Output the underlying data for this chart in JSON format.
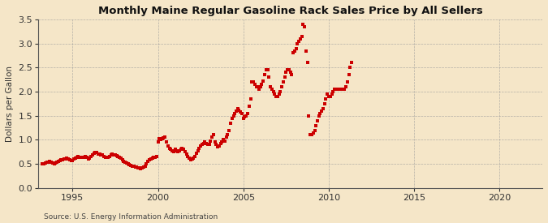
{
  "title": "Monthly Maine Regular Gasoline Rack Sales Price by All Sellers",
  "ylabel": "Dollars per Gallon",
  "source": "Source: U.S. Energy Information Administration",
  "background_color": "#f5e6c8",
  "plot_bg_color": "#f5e6c8",
  "line_color": "#cc0000",
  "marker": "s",
  "markersize": 2.2,
  "xlim": [
    1993.0,
    2022.5
  ],
  "ylim": [
    0.0,
    3.5
  ],
  "yticks": [
    0.0,
    0.5,
    1.0,
    1.5,
    2.0,
    2.5,
    3.0,
    3.5
  ],
  "xticks": [
    1995,
    2000,
    2005,
    2010,
    2015,
    2020
  ],
  "data": {
    "dates": [
      1993.25,
      1993.33,
      1993.42,
      1993.5,
      1993.58,
      1993.67,
      1993.75,
      1993.83,
      1993.92,
      1994.0,
      1994.08,
      1994.17,
      1994.25,
      1994.33,
      1994.42,
      1994.5,
      1994.58,
      1994.67,
      1994.75,
      1994.83,
      1994.92,
      1995.0,
      1995.08,
      1995.17,
      1995.25,
      1995.33,
      1995.42,
      1995.5,
      1995.58,
      1995.67,
      1995.75,
      1995.83,
      1995.92,
      1996.0,
      1996.08,
      1996.17,
      1996.25,
      1996.33,
      1996.42,
      1996.5,
      1996.58,
      1996.67,
      1996.75,
      1996.83,
      1996.92,
      1997.0,
      1997.08,
      1997.17,
      1997.25,
      1997.33,
      1997.42,
      1997.5,
      1997.58,
      1997.67,
      1997.75,
      1997.83,
      1997.92,
      1998.0,
      1998.08,
      1998.17,
      1998.25,
      1998.33,
      1998.42,
      1998.5,
      1998.58,
      1998.67,
      1998.75,
      1998.83,
      1998.92,
      1999.0,
      1999.08,
      1999.17,
      1999.25,
      1999.33,
      1999.42,
      1999.5,
      1999.58,
      1999.67,
      1999.75,
      1999.83,
      1999.92,
      2000.0,
      2000.08,
      2000.17,
      2000.25,
      2000.33,
      2000.42,
      2000.5,
      2000.58,
      2000.67,
      2000.75,
      2000.83,
      2000.92,
      2001.0,
      2001.08,
      2001.17,
      2001.25,
      2001.33,
      2001.42,
      2001.5,
      2001.58,
      2001.67,
      2001.75,
      2001.83,
      2001.92,
      2002.0,
      2002.08,
      2002.17,
      2002.25,
      2002.33,
      2002.42,
      2002.5,
      2002.58,
      2002.67,
      2002.75,
      2002.83,
      2002.92,
      2003.0,
      2003.08,
      2003.17,
      2003.25,
      2003.33,
      2003.42,
      2003.5,
      2003.58,
      2003.67,
      2003.75,
      2003.83,
      2003.92,
      2004.0,
      2004.08,
      2004.17,
      2004.25,
      2004.33,
      2004.42,
      2004.5,
      2004.58,
      2004.67,
      2004.75,
      2004.83,
      2004.92,
      2005.0,
      2005.08,
      2005.17,
      2005.25,
      2005.33,
      2005.42,
      2005.5,
      2005.58,
      2005.67,
      2005.75,
      2005.83,
      2005.92,
      2006.0,
      2006.08,
      2006.17,
      2006.25,
      2006.33,
      2006.42,
      2006.5,
      2006.58,
      2006.67,
      2006.75,
      2006.83,
      2006.92,
      2007.0,
      2007.08,
      2007.17,
      2007.25,
      2007.33,
      2007.42,
      2007.5,
      2007.58,
      2007.67,
      2007.75,
      2007.83,
      2007.92,
      2008.0,
      2008.08,
      2008.17,
      2008.25,
      2008.33,
      2008.42,
      2008.5,
      2008.58,
      2008.67,
      2008.75,
      2008.83,
      2008.92,
      2009.0,
      2009.08,
      2009.17,
      2009.25,
      2009.33,
      2009.42,
      2009.5,
      2009.58,
      2009.67,
      2009.75,
      2009.83,
      2009.92,
      2010.0,
      2010.08,
      2010.17,
      2010.25,
      2010.33,
      2010.42,
      2010.5,
      2010.58,
      2010.67,
      2010.75,
      2010.83,
      2010.92,
      2011.0,
      2011.08,
      2011.17,
      2011.25,
      2011.33
    ],
    "values": [
      0.5,
      0.51,
      0.52,
      0.53,
      0.54,
      0.55,
      0.53,
      0.52,
      0.51,
      0.52,
      0.53,
      0.55,
      0.57,
      0.58,
      0.59,
      0.6,
      0.61,
      0.62,
      0.61,
      0.59,
      0.57,
      0.57,
      0.6,
      0.62,
      0.64,
      0.65,
      0.64,
      0.63,
      0.63,
      0.64,
      0.65,
      0.63,
      0.6,
      0.62,
      0.65,
      0.68,
      0.72,
      0.74,
      0.73,
      0.71,
      0.7,
      0.69,
      0.68,
      0.66,
      0.63,
      0.63,
      0.64,
      0.66,
      0.68,
      0.7,
      0.69,
      0.68,
      0.67,
      0.65,
      0.64,
      0.62,
      0.58,
      0.56,
      0.54,
      0.52,
      0.5,
      0.48,
      0.47,
      0.46,
      0.45,
      0.44,
      0.43,
      0.42,
      0.41,
      0.4,
      0.41,
      0.43,
      0.46,
      0.5,
      0.55,
      0.58,
      0.6,
      0.62,
      0.63,
      0.64,
      0.65,
      0.95,
      1.02,
      1.0,
      1.02,
      1.04,
      1.05,
      0.95,
      0.88,
      0.82,
      0.8,
      0.78,
      0.75,
      0.8,
      0.78,
      0.76,
      0.77,
      0.8,
      0.82,
      0.8,
      0.75,
      0.7,
      0.65,
      0.62,
      0.58,
      0.6,
      0.62,
      0.66,
      0.72,
      0.78,
      0.82,
      0.88,
      0.9,
      0.92,
      0.95,
      0.93,
      0.9,
      0.9,
      0.98,
      1.05,
      1.1,
      0.95,
      0.9,
      0.85,
      0.88,
      0.92,
      0.96,
      1.0,
      0.98,
      1.05,
      1.1,
      1.2,
      1.35,
      1.45,
      1.5,
      1.55,
      1.6,
      1.65,
      1.62,
      1.58,
      1.55,
      1.45,
      1.48,
      1.5,
      1.55,
      1.7,
      1.85,
      2.2,
      2.2,
      2.15,
      2.1,
      2.1,
      2.05,
      2.1,
      2.15,
      2.22,
      2.35,
      2.45,
      2.45,
      2.3,
      2.1,
      2.05,
      2.0,
      1.95,
      1.9,
      1.9,
      1.95,
      2.0,
      2.1,
      2.2,
      2.3,
      2.4,
      2.45,
      2.45,
      2.4,
      2.35,
      2.8,
      2.85,
      2.9,
      3.0,
      3.05,
      3.1,
      3.15,
      3.4,
      3.35,
      2.85,
      2.6,
      1.5,
      1.1,
      1.1,
      1.15,
      1.2,
      1.3,
      1.4,
      1.5,
      1.55,
      1.6,
      1.65,
      1.75,
      1.85,
      1.95,
      1.9,
      1.9,
      1.95,
      2.0,
      2.05,
      2.05,
      2.05,
      2.05,
      2.05,
      2.05,
      2.05,
      2.05,
      2.1,
      2.2,
      2.35,
      2.5,
      2.6
    ]
  }
}
